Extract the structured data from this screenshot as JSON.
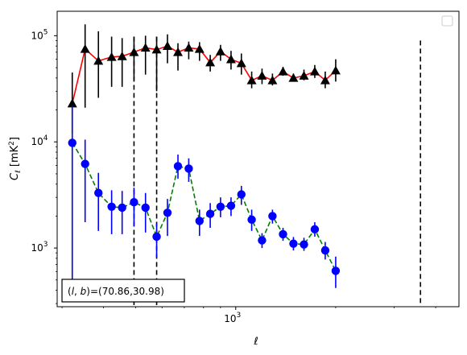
{
  "chart_data": {
    "type": "scatter",
    "xlabel": "ℓ",
    "ylabel": "C_ℓ  [mK²]",
    "x_scale": "log",
    "y_scale": "log",
    "xlim": [
      290,
      4700
    ],
    "ylim": [
      280,
      170000
    ],
    "x_tick_labels": [
      {
        "value": 1000,
        "base": "10",
        "exp": "3"
      }
    ],
    "y_tick_labels": [
      {
        "value": 1000,
        "base": "10",
        "exp": "3"
      },
      {
        "value": 10000,
        "base": "10",
        "exp": "4"
      },
      {
        "value": 100000,
        "base": "10",
        "exp": "5"
      }
    ],
    "vertical_lines": [
      {
        "x": 494,
        "y_range": [
          290,
          98000
        ]
      },
      {
        "x": 578,
        "y_range": [
          290,
          98000
        ]
      },
      {
        "x": 3600,
        "y_range": [
          290,
          90000
        ]
      }
    ],
    "annotation": "(l, b)=(70.86,30.98)",
    "legend": "top-right, empty box",
    "series": [
      {
        "marker": "triangle",
        "marker_color": "#000000",
        "line_color": "#ff0000",
        "line_style": "solid",
        "points": [
          {
            "x": 322,
            "y": 23000,
            "lo": 12000,
            "hi": 45000
          },
          {
            "x": 352,
            "y": 75000,
            "lo": 21000,
            "hi": 128000
          },
          {
            "x": 386,
            "y": 58000,
            "lo": 26000,
            "hi": 110000
          },
          {
            "x": 423,
            "y": 63000,
            "lo": 33000,
            "hi": 98000
          },
          {
            "x": 455,
            "y": 64000,
            "lo": 33000,
            "hi": 95000
          },
          {
            "x": 494,
            "y": 70000,
            "lo": 38000,
            "hi": 98000
          },
          {
            "x": 535,
            "y": 77000,
            "lo": 43000,
            "hi": 100000
          },
          {
            "x": 578,
            "y": 74000,
            "lo": 30000,
            "hi": 98000
          },
          {
            "x": 623,
            "y": 80000,
            "lo": 55000,
            "hi": 103000
          },
          {
            "x": 670,
            "y": 70000,
            "lo": 47000,
            "hi": 85000
          },
          {
            "x": 722,
            "y": 77000,
            "lo": 60000,
            "hi": 88000
          },
          {
            "x": 778,
            "y": 75000,
            "lo": 58000,
            "hi": 87000
          },
          {
            "x": 838,
            "y": 56000,
            "lo": 46000,
            "hi": 66000
          },
          {
            "x": 900,
            "y": 71000,
            "lo": 58000,
            "hi": 82000
          },
          {
            "x": 968,
            "y": 60000,
            "lo": 48000,
            "hi": 72000
          },
          {
            "x": 1040,
            "y": 55000,
            "lo": 43000,
            "hi": 68000
          },
          {
            "x": 1117,
            "y": 38000,
            "lo": 32000,
            "hi": 46000
          },
          {
            "x": 1200,
            "y": 42000,
            "lo": 35000,
            "hi": 49000
          },
          {
            "x": 1290,
            "y": 38000,
            "lo": 34000,
            "hi": 44000
          },
          {
            "x": 1388,
            "y": 46000,
            "lo": 42000,
            "hi": 51000
          },
          {
            "x": 1492,
            "y": 40000,
            "lo": 37000,
            "hi": 44000
          },
          {
            "x": 1605,
            "y": 42000,
            "lo": 38000,
            "hi": 48000
          },
          {
            "x": 1730,
            "y": 46000,
            "lo": 40000,
            "hi": 53000
          },
          {
            "x": 1860,
            "y": 38000,
            "lo": 32000,
            "hi": 46000
          },
          {
            "x": 2000,
            "y": 47000,
            "lo": 37000,
            "hi": 60000
          }
        ]
      },
      {
        "marker": "circle",
        "marker_color": "#0000ff",
        "line_color": "#008000",
        "line_style": "dashed",
        "points": [
          {
            "x": 322,
            "y": 9800,
            "lo": 470,
            "hi": 22000
          },
          {
            "x": 352,
            "y": 6200,
            "lo": 1750,
            "hi": 10500
          },
          {
            "x": 386,
            "y": 3300,
            "lo": 1450,
            "hi": 5100
          },
          {
            "x": 423,
            "y": 2450,
            "lo": 1350,
            "hi": 3500
          },
          {
            "x": 455,
            "y": 2400,
            "lo": 1350,
            "hi": 3450
          },
          {
            "x": 494,
            "y": 2700,
            "lo": 1600,
            "hi": 3700
          },
          {
            "x": 535,
            "y": 2400,
            "lo": 1400,
            "hi": 3300
          },
          {
            "x": 578,
            "y": 1280,
            "lo": 820,
            "hi": 1700
          },
          {
            "x": 623,
            "y": 2150,
            "lo": 1300,
            "hi": 2900
          },
          {
            "x": 670,
            "y": 5900,
            "lo": 4500,
            "hi": 7600
          },
          {
            "x": 722,
            "y": 5600,
            "lo": 4200,
            "hi": 7000
          },
          {
            "x": 778,
            "y": 1800,
            "lo": 1300,
            "hi": 2300
          },
          {
            "x": 838,
            "y": 2100,
            "lo": 1550,
            "hi": 2650
          },
          {
            "x": 900,
            "y": 2450,
            "lo": 1950,
            "hi": 3000
          },
          {
            "x": 968,
            "y": 2500,
            "lo": 2000,
            "hi": 3000
          },
          {
            "x": 1040,
            "y": 3200,
            "lo": 2550,
            "hi": 3850
          },
          {
            "x": 1117,
            "y": 1850,
            "lo": 1450,
            "hi": 2300
          },
          {
            "x": 1200,
            "y": 1180,
            "lo": 1000,
            "hi": 1380
          },
          {
            "x": 1290,
            "y": 2000,
            "lo": 1700,
            "hi": 2300
          },
          {
            "x": 1388,
            "y": 1350,
            "lo": 1170,
            "hi": 1550
          },
          {
            "x": 1492,
            "y": 1100,
            "lo": 950,
            "hi": 1270
          },
          {
            "x": 1605,
            "y": 1080,
            "lo": 940,
            "hi": 1250
          },
          {
            "x": 1730,
            "y": 1500,
            "lo": 1280,
            "hi": 1750
          },
          {
            "x": 1860,
            "y": 950,
            "lo": 780,
            "hi": 1140
          },
          {
            "x": 2000,
            "y": 610,
            "lo": 420,
            "hi": 830
          }
        ]
      }
    ]
  }
}
